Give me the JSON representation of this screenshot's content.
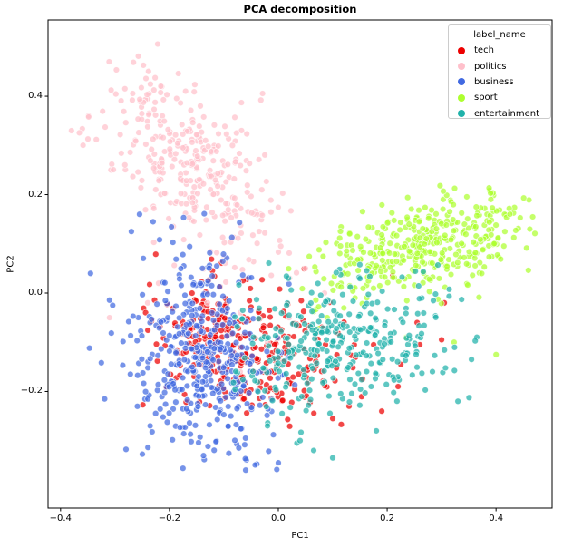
{
  "legend": {
    "title": "label_name",
    "entries": [
      {
        "label": "tech",
        "color": "#ed0000"
      },
      {
        "label": "politics",
        "color": "#ffc0cb"
      },
      {
        "label": "business",
        "color": "#4169e1"
      },
      {
        "label": "sport",
        "color": "#adff2f"
      },
      {
        "label": "entertainment",
        "color": "#20b2aa"
      }
    ]
  },
  "chart_data": {
    "type": "scatter",
    "title": "PCA decomposition",
    "xlabel": "PC1",
    "ylabel": "PC2",
    "xlim": [
      -0.423,
      0.503
    ],
    "ylim": [
      -0.437,
      0.555
    ],
    "x_ticks": [
      {
        "value": -0.4,
        "label": "−0.4"
      },
      {
        "value": -0.2,
        "label": "−0.2"
      },
      {
        "value": 0.0,
        "label": "0.0"
      },
      {
        "value": 0.2,
        "label": "0.2"
      },
      {
        "value": 0.4,
        "label": "0.4"
      }
    ],
    "y_ticks": [
      {
        "value": 0.4,
        "label": "0.4"
      },
      {
        "value": 0.2,
        "label": "0.2"
      },
      {
        "value": 0.0,
        "label": "0.0"
      },
      {
        "value": -0.2,
        "label": "−0.2"
      }
    ],
    "grid": false,
    "legend_position": "upper right",
    "seed": 11,
    "marker": {
      "radius": 3.4,
      "fill_opacity": 0.72,
      "edge_color": "#ffffff",
      "edge_width": 0.7,
      "edge_opacity": 0.8
    },
    "series": [
      {
        "name": "tech",
        "color": "#ed0000",
        "count": 320,
        "cluster": {
          "center": [
            -0.065,
            -0.115
          ],
          "angle_deg": -25,
          "sd": [
            0.085,
            0.063
          ],
          "clip_x": [
            -0.25,
            0.17
          ],
          "clip_y": [
            -0.3,
            0.08
          ]
        },
        "extra_points": [
          [
            0.21,
            0.035
          ],
          [
            0.255,
            -0.06
          ],
          [
            0.3,
            -0.095
          ],
          [
            0.225,
            -0.145
          ],
          [
            0.13,
            -0.23
          ],
          [
            0.175,
            -0.105
          ],
          [
            0.26,
            -0.105
          ],
          [
            0.22,
            -0.19
          ],
          [
            0.1,
            -0.255
          ],
          [
            0.305,
            -0.02
          ],
          [
            0.19,
            -0.24
          ],
          [
            0.155,
            -0.175
          ]
        ]
      },
      {
        "name": "politics",
        "color": "#ffc0cb",
        "count": 340,
        "cluster": {
          "center": [
            -0.155,
            0.265
          ],
          "angle_deg": -56,
          "sd": [
            0.115,
            0.058
          ],
          "clip_x": [
            -0.385,
            0.1
          ],
          "clip_y": [
            0.02,
            0.525
          ]
        },
        "extra_points": [
          [
            -0.38,
            0.33
          ],
          [
            -0.07,
            -0.04
          ],
          [
            0.02,
            -0.05
          ],
          [
            -0.13,
            -0.02
          ],
          [
            -0.07,
            -0.16
          ],
          [
            0.085,
            0.0
          ],
          [
            -0.22,
            0.02
          ],
          [
            -0.02,
            -0.1
          ],
          [
            -0.17,
            -0.07
          ],
          [
            -0.31,
            -0.05
          ],
          [
            -0.24,
            -0.02
          ],
          [
            0.05,
            0.05
          ]
        ]
      },
      {
        "name": "business",
        "color": "#4169e1",
        "count": 430,
        "cluster": {
          "center": [
            -0.135,
            -0.125
          ],
          "angle_deg": -80,
          "sd": [
            0.105,
            0.063
          ],
          "clip_x": [
            -0.36,
            0.065
          ],
          "clip_y": [
            -0.395,
            0.175
          ]
        },
        "extra_points": [
          [
            -0.255,
            0.16
          ],
          [
            -0.27,
            0.125
          ],
          [
            -0.345,
            0.04
          ],
          [
            -0.23,
            0.145
          ],
          [
            0.0,
            -0.345
          ],
          [
            -0.06,
            -0.36
          ]
        ]
      },
      {
        "name": "sport",
        "color": "#adff2f",
        "count": 400,
        "cluster": {
          "center": [
            0.27,
            0.095
          ],
          "angle_deg": 17,
          "sd": [
            0.105,
            0.047
          ],
          "clip_x": [
            0.005,
            0.475
          ],
          "clip_y": [
            -0.105,
            0.235
          ]
        },
        "extra_points": [
          [
            0.462,
            0.13
          ],
          [
            0.323,
            -0.1
          ],
          [
            0.235,
            -0.09
          ],
          [
            0.4,
            -0.125
          ],
          [
            0.09,
            -0.05
          ]
        ]
      },
      {
        "name": "entertainment",
        "color": "#20b2aa",
        "count": 330,
        "cluster": {
          "center": [
            0.105,
            -0.1
          ],
          "angle_deg": 12,
          "sd": [
            0.105,
            0.068
          ],
          "clip_x": [
            -0.085,
            0.375
          ],
          "clip_y": [
            -0.345,
            0.085
          ]
        },
        "extra_points": [
          [
            0.04,
            -0.3
          ],
          [
            0.1,
            -0.335
          ],
          [
            -0.02,
            -0.27
          ],
          [
            0.33,
            -0.22
          ],
          [
            0.18,
            -0.28
          ],
          [
            0.355,
            -0.135
          ],
          [
            0.065,
            -0.32
          ]
        ]
      }
    ]
  }
}
